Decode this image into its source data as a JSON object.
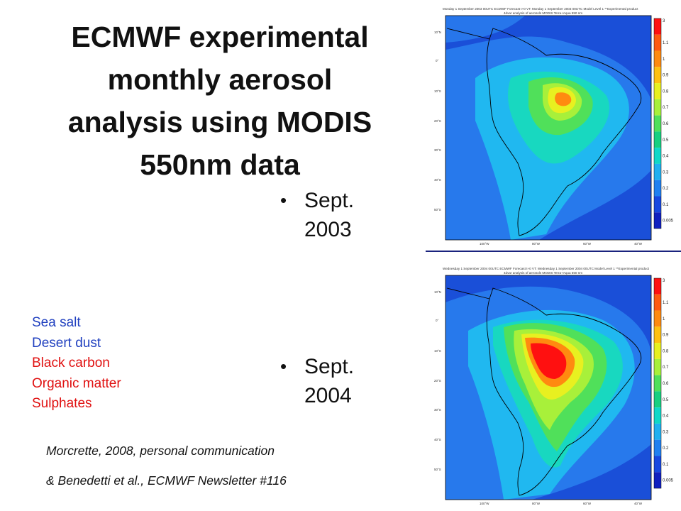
{
  "title_lines": [
    "ECMWF experimental",
    "monthly aerosol",
    "analysis using MODIS",
    "550nm data"
  ],
  "bullets": [
    {
      "lines": [
        "Sept.",
        "2003"
      ]
    },
    {
      "lines": [
        "Sept.",
        "2004"
      ]
    }
  ],
  "legend": [
    {
      "label": "Sea salt",
      "color": "#1f3fbf"
    },
    {
      "label": "Desert dust",
      "color": "#1f3fbf"
    },
    {
      "label": "Black carbon",
      "color": "#e01010"
    },
    {
      "label": "Organic matter",
      "color": "#e01010"
    },
    {
      "label": "Sulphates",
      "color": "#e01010"
    }
  ],
  "citation": {
    "line1": "Morcrette, 2008, personal communication",
    "line2": "& Benedetti et al., ECMWF Newsletter #116"
  },
  "maps": [
    {
      "header": "Monday 1 September 2003 00UTC ECMWF Forecast t+0 VT: Monday 1 September 2003 00UTC Model Level 1 **Experimental product",
      "subheader": "4dvar analysis of aerosols MODIS Terra+Aqua 550 nm",
      "lat_labels": [
        "10°N",
        "0°",
        "10°S",
        "20°S",
        "30°S",
        "40°S",
        "50°S"
      ],
      "lon_labels": [
        "100°W",
        "80°W",
        "60°W",
        "40°W"
      ]
    },
    {
      "header": "Wednesday 1 September 2004 00UTC ECMWF Forecast t+0 VT: Wednesday 1 September 2004 00UTC Model Level 1 **Experimental product",
      "subheader": "4dvar analysis of aerosols MODIS Terra+Aqua 550 nm",
      "lat_labels": [
        "10°N",
        "0°",
        "10°S",
        "20°S",
        "30°S",
        "40°S",
        "50°S"
      ],
      "lon_labels": [
        "100°W",
        "80°W",
        "60°W",
        "40°W"
      ]
    }
  ],
  "colorbar": {
    "labels": [
      "3",
      "1.1",
      "1",
      "0.9",
      "0.8",
      "0.7",
      "0.6",
      "0.5",
      "0.4",
      "0.3",
      "0.2",
      "0.1",
      "0.005"
    ],
    "colors": [
      "#ff1010",
      "#ff5a10",
      "#ff8a10",
      "#ffc010",
      "#e8f020",
      "#a8f03a",
      "#50e05a",
      "#18d080",
      "#10d8c8",
      "#20b0f0",
      "#2080f0",
      "#1848e0",
      "#1020c0"
    ]
  }
}
